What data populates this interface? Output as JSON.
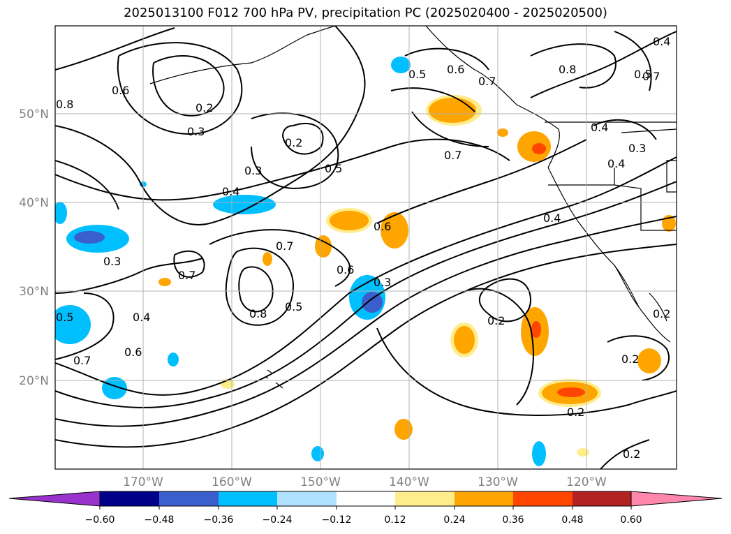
{
  "title": "2025013100 F012 700 hPa PV, precipitation PC (2025020400 - 2025020500)",
  "lat_labels": [
    "50°N",
    "40°N",
    "30°N",
    "20°N"
  ],
  "lon_labels": [
    "170°W",
    "160°W",
    "150°W",
    "140°W",
    "130°W",
    "120°W"
  ],
  "colorbar": {
    "ticks": [
      "−0.60",
      "−0.48",
      "−0.36",
      "−0.24",
      "−0.12",
      "0.12",
      "0.24",
      "0.36",
      "0.48",
      "0.60"
    ],
    "colors": [
      "#9932cc",
      "#00008b",
      "#3a5fcd",
      "#00bfff",
      "#b0e2ff",
      "#ffffff",
      "#ffec8b",
      "#ffa500",
      "#ff4500",
      "#b22222",
      "#ff86ac"
    ]
  },
  "contour_labels": [
    "0.8",
    "0.6",
    "0.2",
    "0.3",
    "0.2",
    "0.3",
    "0.4",
    "0.5",
    "0.5",
    "0.6",
    "0.7",
    "0.8",
    "0.7",
    "0.4",
    "0.4",
    "0.3",
    "0.4",
    "0.5",
    "0.6",
    "0.7",
    "0.6",
    "0.5",
    "0.3",
    "0.8",
    "0.7",
    "0.7",
    "0.3",
    "0.5",
    "0.4",
    "0.6",
    "0.7",
    "0.2",
    "0.4",
    "0.2",
    "0.2",
    "0.2",
    "0.2"
  ]
}
